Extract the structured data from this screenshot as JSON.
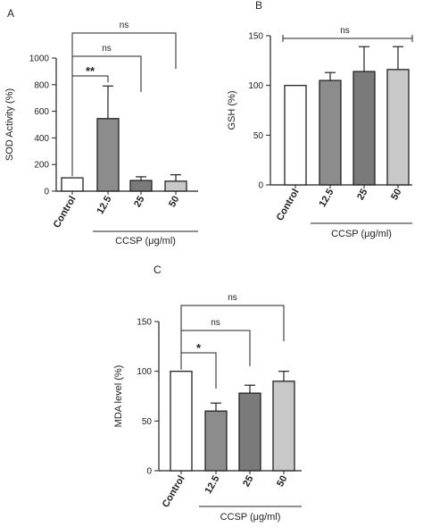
{
  "chart_data": [
    {
      "type": "bar",
      "panel_label": "A",
      "categories": [
        "Control",
        "12.5",
        "25",
        "50"
      ],
      "values": [
        100,
        545,
        80,
        75
      ],
      "errors": [
        0,
        245,
        28,
        48
      ],
      "bar_colors": [
        "#ffffff",
        "#8c8c8c",
        "#7a7a7a",
        "#c8c8c8"
      ],
      "ylabel": "SOD Activity (%)",
      "xlabel": "CCSP (μg/ml)",
      "ylim": [
        0,
        1000
      ],
      "yticks": [
        0,
        200,
        400,
        600,
        800,
        1000
      ],
      "grid": false,
      "significance": [
        {
          "from": 0,
          "to": 1,
          "label": "**"
        },
        {
          "from": 0,
          "to": 2,
          "label": "ns"
        },
        {
          "from": 0,
          "to": 3,
          "label": "ns"
        }
      ]
    },
    {
      "type": "bar",
      "panel_label": "B",
      "categories": [
        "Control",
        "12.5",
        "25",
        "50"
      ],
      "values": [
        100,
        105,
        114,
        116
      ],
      "errors": [
        0,
        8,
        25,
        23
      ],
      "bar_colors": [
        "#ffffff",
        "#8c8c8c",
        "#7a7a7a",
        "#c8c8c8"
      ],
      "ylabel": "GSH (%)",
      "xlabel": "CCSP (μg/ml)",
      "ylim": [
        0,
        150
      ],
      "yticks": [
        0,
        50,
        100,
        150
      ],
      "grid": false,
      "significance": [
        {
          "from": 0,
          "to": 3,
          "label": "ns",
          "style": "span"
        }
      ]
    },
    {
      "type": "bar",
      "panel_label": "C",
      "categories": [
        "Control",
        "12.5",
        "25",
        "50"
      ],
      "values": [
        100,
        60,
        78,
        90
      ],
      "errors": [
        0,
        8,
        8,
        10
      ],
      "bar_colors": [
        "#ffffff",
        "#8c8c8c",
        "#7a7a7a",
        "#c8c8c8"
      ],
      "ylabel": "MDA level (%)",
      "xlabel": "CCSP (μg/ml)",
      "ylim": [
        0,
        150
      ],
      "yticks": [
        0,
        50,
        100,
        150
      ],
      "grid": false,
      "significance": [
        {
          "from": 0,
          "to": 1,
          "label": "*"
        },
        {
          "from": 0,
          "to": 2,
          "label": "ns"
        },
        {
          "from": 0,
          "to": 3,
          "label": "ns"
        }
      ]
    }
  ]
}
